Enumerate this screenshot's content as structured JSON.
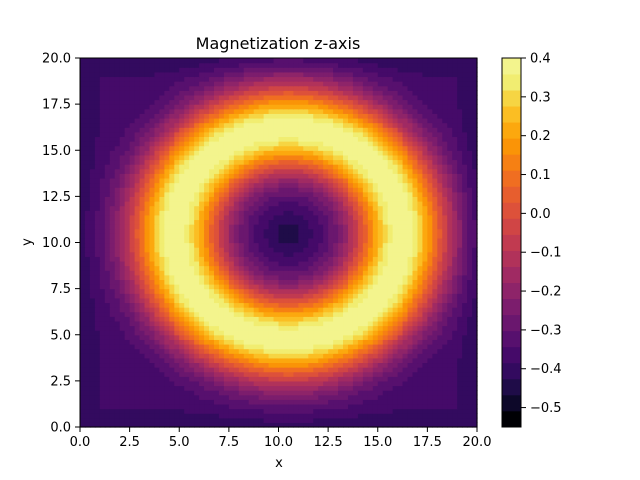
{
  "chart_data": {
    "type": "heatmap",
    "subtype": "filled-contour",
    "title": "Magnetization z-axis",
    "xlabel": "x",
    "ylabel": "y",
    "xlim": [
      0.0,
      20.0
    ],
    "ylim": [
      0.0,
      20.0
    ],
    "x_ticks": [
      "0.0",
      "2.5",
      "5.0",
      "7.5",
      "10.0",
      "12.5",
      "15.0",
      "17.5",
      "20.0"
    ],
    "y_ticks": [
      "0.0",
      "2.5",
      "5.0",
      "7.5",
      "10.0",
      "12.5",
      "15.0",
      "17.5",
      "20.0"
    ],
    "grid": false,
    "colormap": "inferno",
    "colorbar": {
      "range": [
        -0.55,
        0.4
      ],
      "ticks": [
        "0.4",
        "0.3",
        "0.2",
        "0.1",
        "0.0",
        "−0.1",
        "−0.2",
        "−0.3",
        "−0.4",
        "−0.5"
      ],
      "tick_values": [
        0.4,
        0.3,
        0.2,
        0.1,
        0.0,
        -0.1,
        -0.2,
        -0.3,
        -0.4,
        -0.5
      ],
      "level_step": 0.05
    },
    "field": {
      "description": "skyrmion-like ring of high magnetization",
      "center": [
        10.5,
        10.5
      ],
      "ring_radius": 5.7,
      "ring_width": 2.4,
      "max_value": 0.4,
      "min_center_value": -0.45,
      "background_value": -0.38,
      "corner_value": -0.45
    },
    "colors": {
      "levels": [
        "#000004",
        "#0d0829",
        "#1f0c48",
        "#330a5f",
        "#450a69",
        "#57106e",
        "#6a176e",
        "#7c1d6d",
        "#8e2469",
        "#a02a63",
        "#b1325a",
        "#c13a50",
        "#d04545",
        "#dd513a",
        "#e75e2e",
        "#f06e21",
        "#f68013",
        "#fa9407",
        "#fca80e",
        "#fbbe23",
        "#f6d543",
        "#f1ed71",
        "#f3f48d"
      ]
    }
  }
}
